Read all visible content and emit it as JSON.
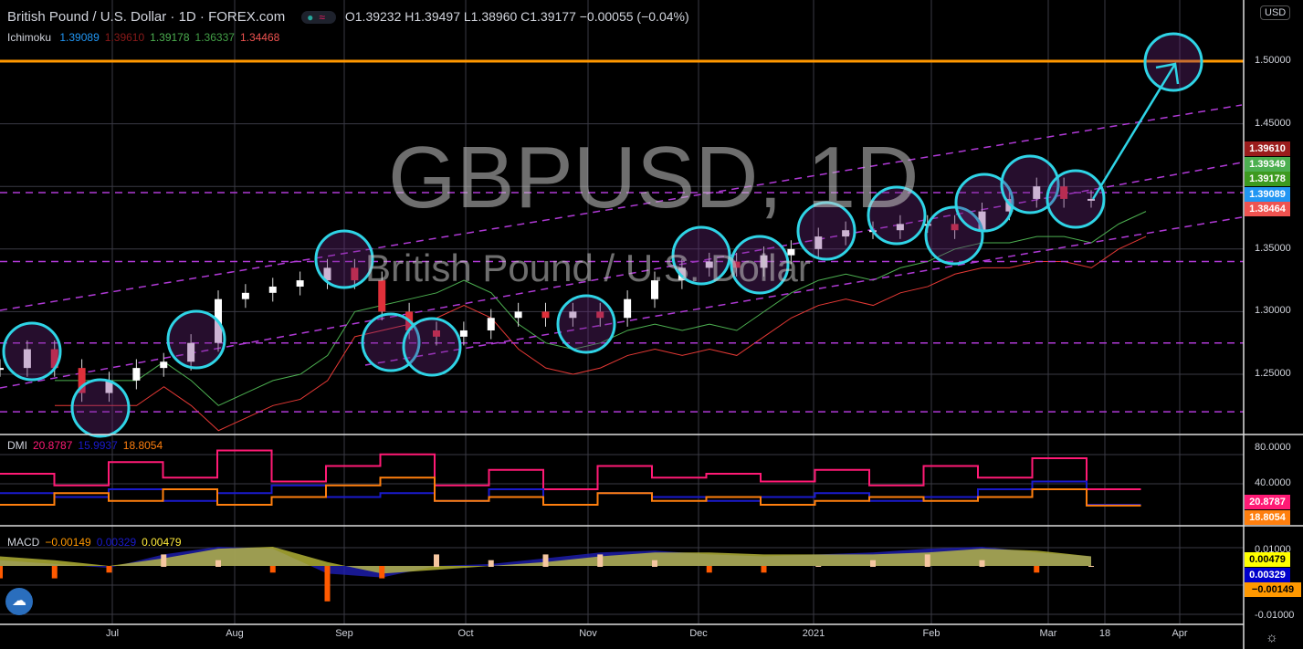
{
  "header": {
    "title": "British Pound / U.S. Dollar · 1D · FOREX.com",
    "ohlc": "O1.39232 H1.39497 L1.38960 C1.39177 −0.00055 (−0.04%)",
    "pill": "≈"
  },
  "ichimoku": {
    "label": "Ichimoku",
    "values": [
      "1.39089",
      "1.39610",
      "1.39178",
      "1.36337",
      "1.34468"
    ],
    "colors": [
      "#2196f3",
      "#8b1a1a",
      "#4caf50",
      "#43a047",
      "#ef5350"
    ]
  },
  "watermark": {
    "symbol": "GBPUSD, 1D",
    "name": "British Pound / U.S. Dollar"
  },
  "dmi": {
    "label": "DMI",
    "values": [
      "20.8787",
      "15.9937",
      "18.8054"
    ],
    "colors": [
      "#ff1a75",
      "#1a1acc",
      "#ff7f0e"
    ]
  },
  "macd": {
    "label": "MACD",
    "values": [
      "−0.00149",
      "0.00329",
      "0.00479"
    ],
    "colors": [
      "#ff9800",
      "#1a1acc",
      "#ffeb3b"
    ]
  },
  "price_axis": {
    "currency": "USD",
    "ticks": [
      "1.50000",
      "1.45000",
      "1.35000",
      "1.30000",
      "1.25000"
    ],
    "tags": [
      {
        "v": "1.39610",
        "c": "#9b1c1c"
      },
      {
        "v": "1.39349",
        "c": "#4caf50"
      },
      {
        "v": "1.39178",
        "c": "#3d9a1f"
      },
      {
        "v": "1.39089",
        "c": "#2196f3"
      },
      {
        "v": "1.38464",
        "c": "#ef5350"
      }
    ]
  },
  "dmi_axis": {
    "ticks": [
      "80.0000",
      "40.0000"
    ],
    "tags": [
      {
        "v": "20.8787",
        "c": "#ff1a75"
      },
      {
        "v": "18.8054",
        "c": "#ff7f0e"
      }
    ]
  },
  "macd_axis": {
    "ticks": [
      "0.01000",
      "-0.01000"
    ],
    "tags": [
      {
        "v": "0.00479",
        "c": "#ffff00",
        "t": "#000"
      },
      {
        "v": "0.00329",
        "c": "#0000cc",
        "t": "#fff"
      },
      {
        "v": "−0.00149",
        "c": "#ff9800",
        "t": "#000"
      }
    ]
  },
  "time_axis": [
    "Jul",
    "Aug",
    "Sep",
    "Oct",
    "Nov",
    "Dec",
    "2021",
    "Feb",
    "Mar",
    "18",
    "Apr"
  ],
  "chart_data": {
    "type": "candlestick",
    "symbol": "GBPUSD",
    "interval": "1D",
    "ylim": [
      1.21,
      1.53
    ],
    "weekly_close": [
      1.255,
      1.27,
      1.255,
      1.235,
      1.245,
      1.255,
      1.26,
      1.275,
      1.31,
      1.315,
      1.32,
      1.325,
      1.335,
      1.325,
      1.3,
      1.285,
      1.28,
      1.285,
      1.295,
      1.3,
      1.295,
      1.3,
      1.295,
      1.31,
      1.325,
      1.335,
      1.34,
      1.335,
      1.345,
      1.35,
      1.36,
      1.365,
      1.365,
      1.37,
      1.37,
      1.365,
      1.38,
      1.39,
      1.4,
      1.39,
      1.39
    ],
    "horizontal_levels": [
      1.5,
      1.395,
      1.34,
      1.275,
      1.22
    ],
    "target": 1.5,
    "dmi": {
      "plus": [
        60,
        45,
        75,
        55,
        90,
        50,
        70,
        85,
        45,
        65,
        40,
        70,
        55,
        60,
        50,
        65,
        45,
        70,
        55,
        80,
        40
      ],
      "minus": [
        35,
        30,
        40,
        25,
        35,
        45,
        30,
        35,
        25,
        40,
        20,
        35,
        30,
        25,
        30,
        35,
        25,
        30,
        40,
        50,
        20
      ],
      "adx": [
        20,
        35,
        25,
        40,
        20,
        30,
        45,
        55,
        25,
        30,
        20,
        35,
        25,
        30,
        20,
        25,
        30,
        25,
        30,
        40,
        19
      ]
    },
    "macd": {
      "line": [
        0.003,
        0.001,
        -0.001,
        0.006,
        0.01,
        0.009,
        -0.004,
        -0.006,
        0.0,
        0.001,
        0.004,
        0.007,
        0.008,
        0.006,
        0.005,
        0.006,
        0.007,
        0.009,
        0.01,
        0.007,
        0.005
      ],
      "signal": [
        0.005,
        0.003,
        0.0,
        0.004,
        0.009,
        0.01,
        0.002,
        -0.004,
        -0.002,
        0.0,
        0.002,
        0.005,
        0.007,
        0.007,
        0.006,
        0.006,
        0.006,
        0.007,
        0.009,
        0.008,
        0.005
      ]
    }
  }
}
